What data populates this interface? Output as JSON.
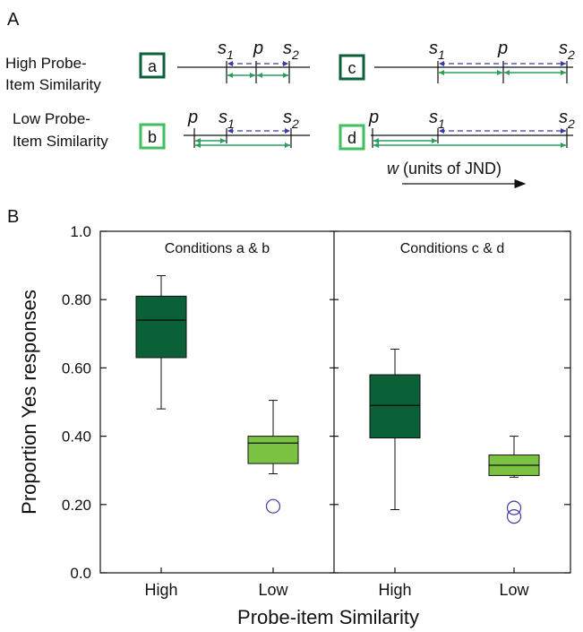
{
  "panel_a": {
    "panel_label": "A",
    "row_high_label_1": "High Probe-",
    "row_high_label_2": "Item Similarity",
    "row_low_label_1": "Low Probe-",
    "row_low_label_2": "Item Similarity",
    "conditions": [
      "a",
      "b",
      "c",
      "d"
    ],
    "markers": {
      "p": "p",
      "s": "s",
      "sub1": "1",
      "sub2": "2"
    },
    "axis_w": "w",
    "axis_units": "(units of JND)",
    "colors": {
      "dark_green": "#0b6137",
      "light_green": "#3fbf5f",
      "blue": "#3a3aa8"
    }
  },
  "panel_b": {
    "panel_label": "B"
  },
  "chart_data": {
    "type": "box",
    "ylabel": "Proportion Yes  responses",
    "xlabel": "Probe-item Similarity",
    "ylim": [
      0.0,
      1.0
    ],
    "yticks": [
      "0.0",
      "0.20",
      "0.40",
      "0.60",
      "0.80",
      "1.0"
    ],
    "grid": false,
    "panels": [
      {
        "title": "Conditions a & b",
        "boxes": [
          {
            "category": "High",
            "whisker_low": 0.48,
            "q1": 0.63,
            "median": 0.74,
            "q3": 0.81,
            "whisker_high": 0.87,
            "outliers": [],
            "color": "#0b6137"
          },
          {
            "category": "Low",
            "whisker_low": 0.29,
            "q1": 0.32,
            "median": 0.38,
            "q3": 0.4,
            "whisker_high": 0.505,
            "outliers": [
              0.195
            ],
            "color": "#7cc242"
          }
        ]
      },
      {
        "title": "Conditions c & d",
        "boxes": [
          {
            "category": "High",
            "whisker_low": 0.185,
            "q1": 0.395,
            "median": 0.49,
            "q3": 0.58,
            "whisker_high": 0.655,
            "outliers": [],
            "color": "#0b6137"
          },
          {
            "category": "Low",
            "whisker_low": 0.28,
            "q1": 0.285,
            "median": 0.315,
            "q3": 0.345,
            "whisker_high": 0.4,
            "outliers": [
              0.19,
              0.165
            ],
            "color": "#7cc242"
          }
        ]
      }
    ],
    "outlier_color": "#3a3aa8"
  }
}
